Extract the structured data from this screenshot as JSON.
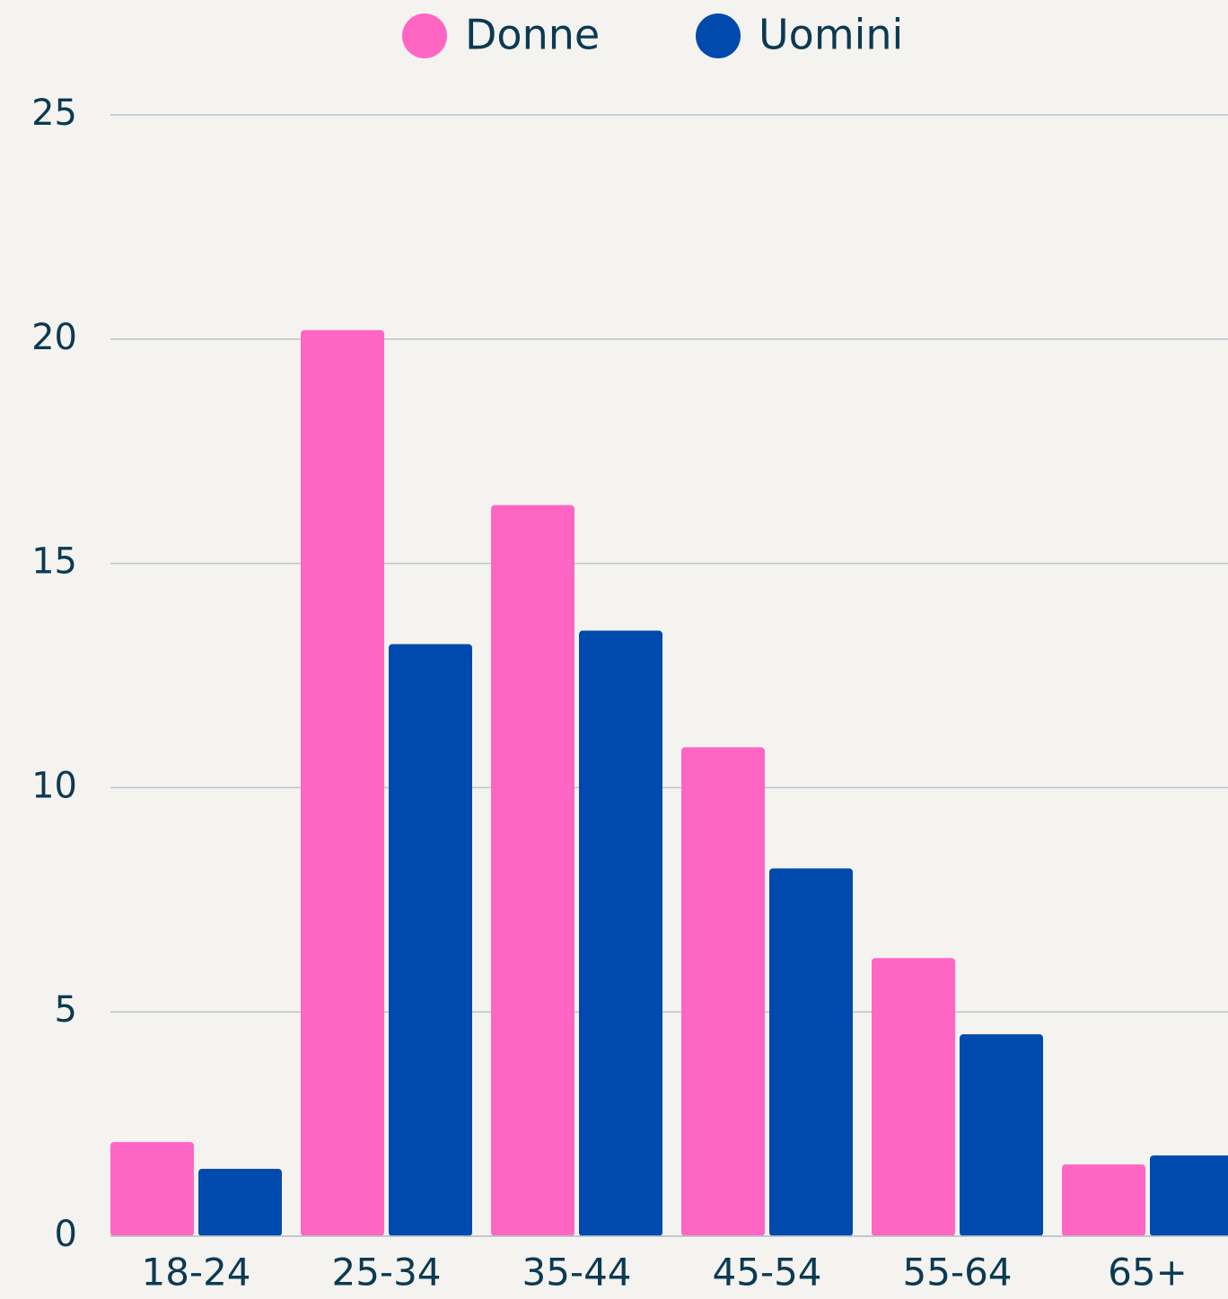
{
  "chart_data": {
    "type": "bar",
    "categories": [
      "18-24",
      "25-34",
      "35-44",
      "45-54",
      "55-64",
      "65+"
    ],
    "series": [
      {
        "name": "Donne",
        "color": "#ff66c4",
        "values": [
          2.1,
          20.2,
          16.3,
          10.9,
          6.2,
          1.6
        ]
      },
      {
        "name": "Uomini",
        "color": "#004aad",
        "values": [
          1.5,
          13.2,
          13.5,
          8.2,
          4.5,
          1.8
        ]
      }
    ],
    "ylim": [
      0,
      25
    ],
    "yticks": [
      0,
      5,
      10,
      15,
      20,
      25
    ],
    "grid": true,
    "legend": "top"
  }
}
